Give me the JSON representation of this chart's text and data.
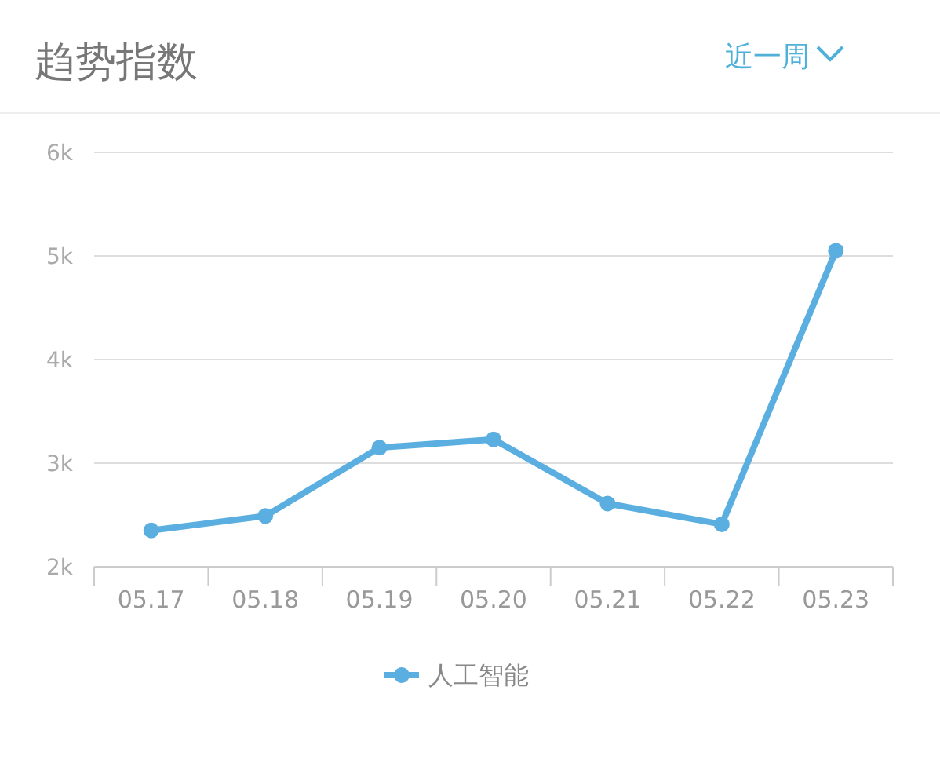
{
  "chart_data": {
    "type": "line",
    "title": "趋势指数",
    "annotations": [
      "近一周"
    ],
    "categories": [
      "05.17",
      "05.18",
      "05.19",
      "05.20",
      "05.21",
      "05.22",
      "05.23"
    ],
    "series": [
      {
        "name": "人工智能",
        "color": "#5aaee0",
        "values": [
          2350,
          2490,
          3150,
          3230,
          2610,
          2410,
          5050
        ]
      }
    ],
    "ylim": [
      2000,
      6000
    ],
    "yticks": [
      {
        "value": 2000,
        "label": "2k"
      },
      {
        "value": 3000,
        "label": "3k"
      },
      {
        "value": 4000,
        "label": "4k"
      },
      {
        "value": 5000,
        "label": "5k"
      },
      {
        "value": 6000,
        "label": "6k"
      }
    ],
    "grid": "y",
    "legend": "bottom",
    "marker": "circle",
    "line_style": "solid"
  }
}
